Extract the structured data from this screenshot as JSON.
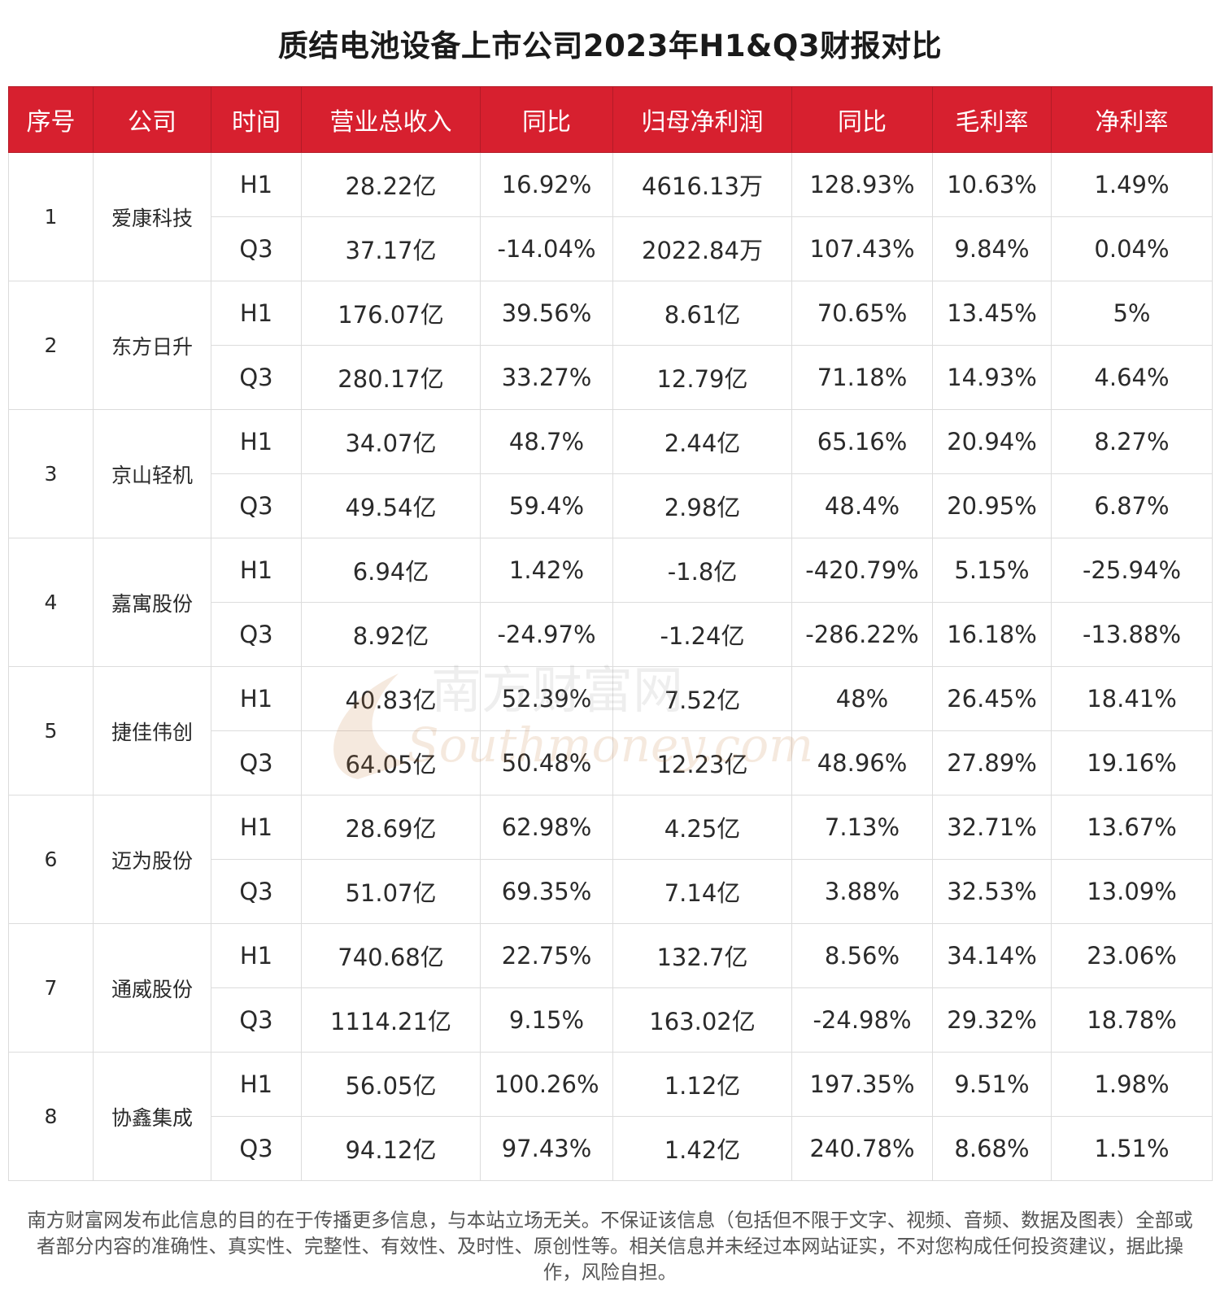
{
  "title": "质结电池设备上市公司2023年H1&Q3财报对比",
  "colors": {
    "header_bg": "#d7202f",
    "header_text": "#ffffff",
    "watermark": "#c87a3a"
  },
  "table": {
    "headers": [
      "序号",
      "公司",
      "时间",
      "营业总收入",
      "同比",
      "归母净利润",
      "同比",
      "毛利率",
      "净利率"
    ],
    "companies": [
      {
        "seq": "1",
        "name": "爱康科技",
        "rows": [
          [
            "H1",
            "28.22亿",
            "16.92%",
            "4616.13万",
            "128.93%",
            "10.63%",
            "1.49%"
          ],
          [
            "Q3",
            "37.17亿",
            "-14.04%",
            "2022.84万",
            "107.43%",
            "9.84%",
            "0.04%"
          ]
        ]
      },
      {
        "seq": "2",
        "name": "东方日升",
        "rows": [
          [
            "H1",
            "176.07亿",
            "39.56%",
            "8.61亿",
            "70.65%",
            "13.45%",
            "5%"
          ],
          [
            "Q3",
            "280.17亿",
            "33.27%",
            "12.79亿",
            "71.18%",
            "14.93%",
            "4.64%"
          ]
        ]
      },
      {
        "seq": "3",
        "name": "京山轻机",
        "rows": [
          [
            "H1",
            "34.07亿",
            "48.7%",
            "2.44亿",
            "65.16%",
            "20.94%",
            "8.27%"
          ],
          [
            "Q3",
            "49.54亿",
            "59.4%",
            "2.98亿",
            "48.4%",
            "20.95%",
            "6.87%"
          ]
        ]
      },
      {
        "seq": "4",
        "name": "嘉寓股份",
        "rows": [
          [
            "H1",
            "6.94亿",
            "1.42%",
            "-1.8亿",
            "-420.79%",
            "5.15%",
            "-25.94%"
          ],
          [
            "Q3",
            "8.92亿",
            "-24.97%",
            "-1.24亿",
            "-286.22%",
            "16.18%",
            "-13.88%"
          ]
        ]
      },
      {
        "seq": "5",
        "name": "捷佳伟创",
        "rows": [
          [
            "H1",
            "40.83亿",
            "52.39%",
            "7.52亿",
            "48%",
            "26.45%",
            "18.41%"
          ],
          [
            "Q3",
            "64.05亿",
            "50.48%",
            "12.23亿",
            "48.96%",
            "27.89%",
            "19.16%"
          ]
        ]
      },
      {
        "seq": "6",
        "name": "迈为股份",
        "rows": [
          [
            "H1",
            "28.69亿",
            "62.98%",
            "4.25亿",
            "7.13%",
            "32.71%",
            "13.67%"
          ],
          [
            "Q3",
            "51.07亿",
            "69.35%",
            "7.14亿",
            "3.88%",
            "32.53%",
            "13.09%"
          ]
        ]
      },
      {
        "seq": "7",
        "name": "通威股份",
        "rows": [
          [
            "H1",
            "740.68亿",
            "22.75%",
            "132.7亿",
            "8.56%",
            "34.14%",
            "23.06%"
          ],
          [
            "Q3",
            "1114.21亿",
            "9.15%",
            "163.02亿",
            "-24.98%",
            "29.32%",
            "18.78%"
          ]
        ]
      },
      {
        "seq": "8",
        "name": "协鑫集成",
        "rows": [
          [
            "H1",
            "56.05亿",
            "100.26%",
            "1.12亿",
            "197.35%",
            "9.51%",
            "1.98%"
          ],
          [
            "Q3",
            "94.12亿",
            "97.43%",
            "1.42亿",
            "240.78%",
            "8.68%",
            "1.51%"
          ]
        ]
      }
    ]
  },
  "watermark": {
    "cn": "南方财富网",
    "en": "Southmoney.com"
  },
  "disclaimer": "南方财富网发布此信息的目的在于传播更多信息，与本站立场无关。不保证该信息（包括但不限于文字、视频、音频、数据及图表）全部或者部分内容的准确性、真实性、完整性、有效性、及时性、原创性等。相关信息并未经过本网站证实，不对您构成任何投资建议，据此操作，风险自担。"
}
